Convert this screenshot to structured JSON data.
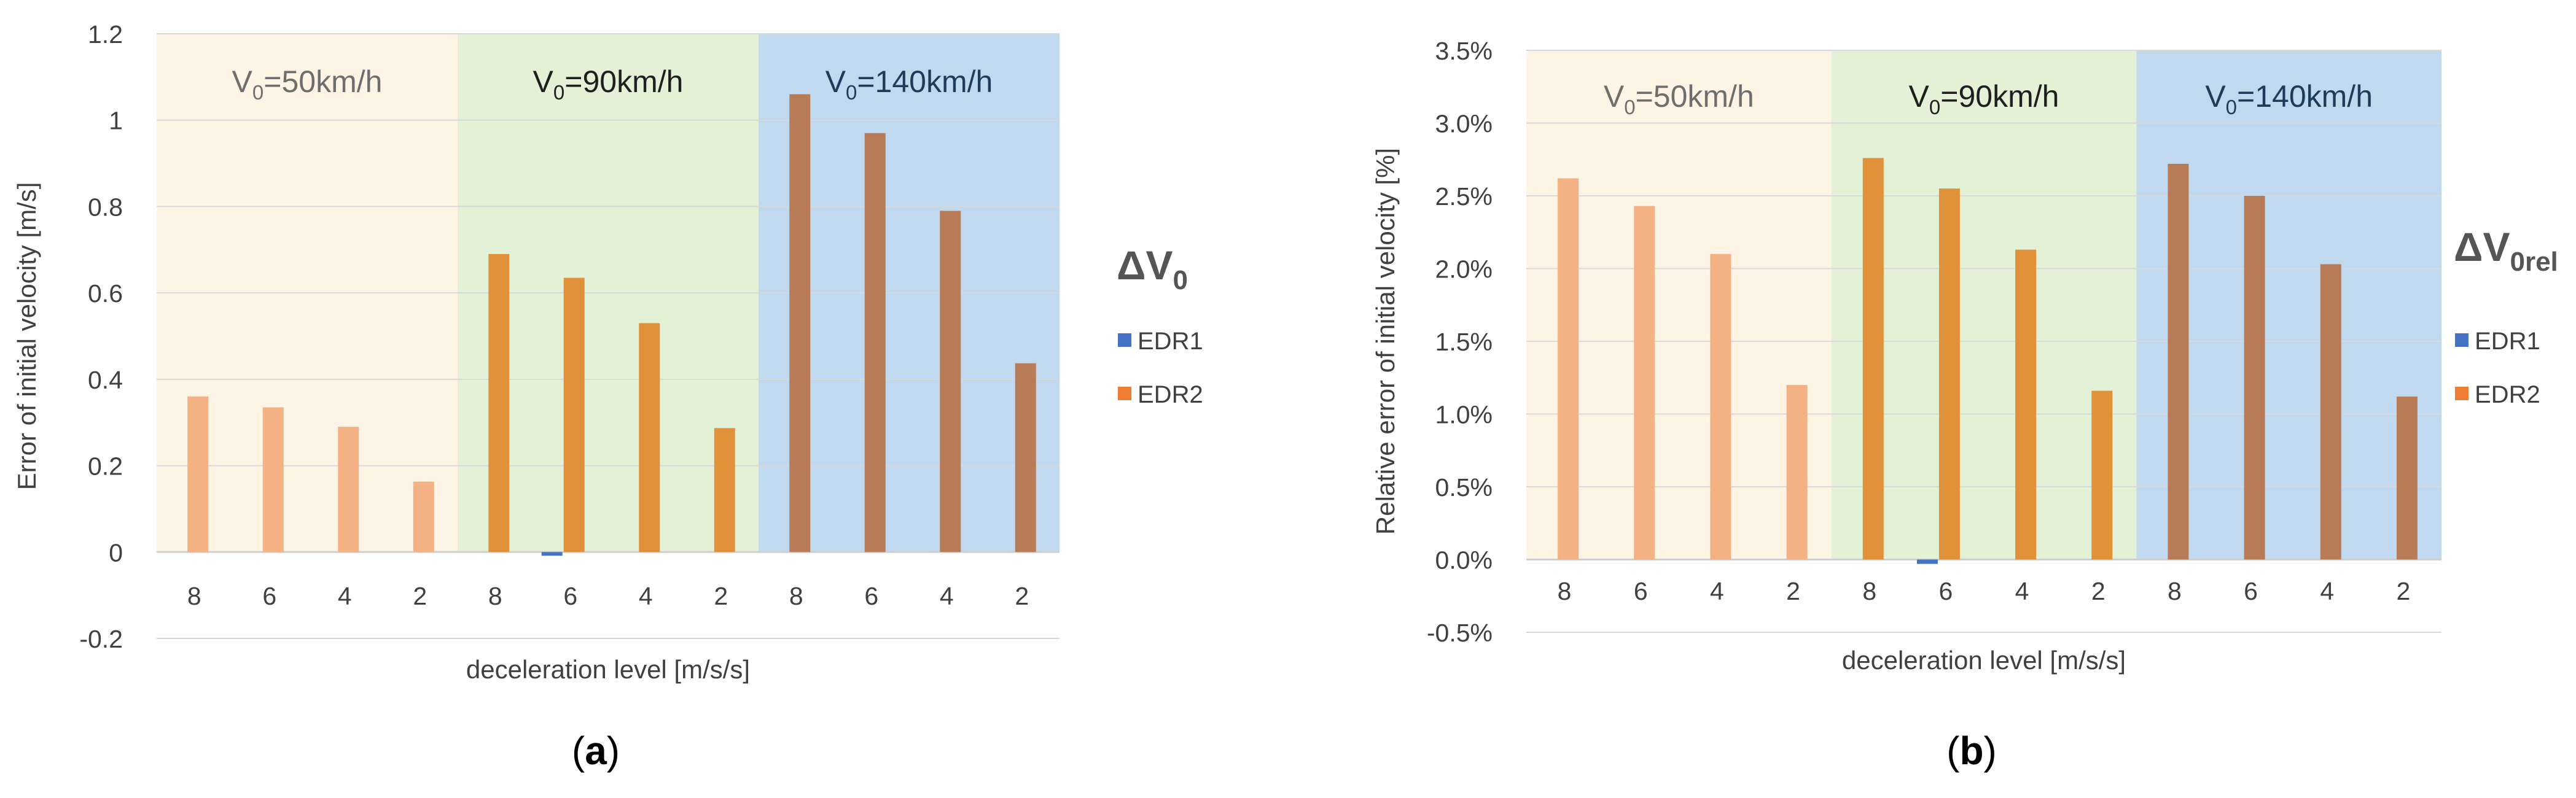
{
  "chart_data": [
    {
      "type": "bar",
      "panel_label": "(a)",
      "ylabel": "Error of initial velocity  [m/s]",
      "xlabel": "deceleration level [m/s/s]",
      "categories": [
        "8",
        "6",
        "4",
        "2",
        "8",
        "6",
        "4",
        "2",
        "8",
        "6",
        "4",
        "2"
      ],
      "ylim": [
        -0.2,
        1.2
      ],
      "yticks": [
        -0.2,
        0,
        0.2,
        0.4,
        0.6,
        0.8,
        1,
        1.2
      ],
      "ytick_labels": [
        "-0.2",
        "0",
        "0.2",
        "0.4",
        "0.6",
        "0.8",
        "1",
        "1.2"
      ],
      "grid": true,
      "legend_title_main": "ΔV",
      "legend_title_sub": "0",
      "legend": [
        {
          "name": "EDR1",
          "color": "#4472c4"
        },
        {
          "name": "EDR2",
          "color": "#ed7d31"
        }
      ],
      "regions": [
        {
          "label": "V",
          "sub": "0",
          "rest": "=50km/h",
          "from": 0,
          "to": 4,
          "color": "#fdf4e6",
          "text_color": "#6e6e6e"
        },
        {
          "label": "V",
          "sub": "0",
          "rest": "=90km/h",
          "from": 4,
          "to": 8,
          "color": "#e3f1d6",
          "text_color": "#1f1f1f"
        },
        {
          "label": "V",
          "sub": "0",
          "rest": "=140km/h",
          "from": 8,
          "to": 12,
          "color": "#c1d9ee",
          "text_color": "#1f3b5c"
        }
      ],
      "series": [
        {
          "name": "EDR1",
          "values": [
            0.0,
            0.0,
            0.0,
            0.0,
            0.0,
            -0.007,
            0.0,
            0.0,
            0.0,
            0.0,
            0.0,
            0.0
          ]
        },
        {
          "name": "EDR2",
          "values": [
            0.36,
            0.335,
            0.29,
            0.163,
            0.69,
            0.635,
            0.53,
            0.287,
            1.06,
            0.97,
            0.79,
            0.437
          ]
        }
      ],
      "bar_colors": [
        "#f4b183",
        "#f4b183",
        "#f4b183",
        "#f4b183",
        "#e0913a",
        "#e0913a",
        "#e0913a",
        "#e0913a",
        "#b77b57",
        "#b77b57",
        "#b77b57",
        "#b77b57"
      ]
    },
    {
      "type": "bar",
      "panel_label": "(b)",
      "ylabel": "Relative error of initial velocity  [%]",
      "xlabel": "deceleration level [m/s/s]",
      "categories": [
        "8",
        "6",
        "4",
        "2",
        "8",
        "6",
        "4",
        "2",
        "8",
        "6",
        "4",
        "2"
      ],
      "ylim": [
        -0.5,
        3.5
      ],
      "yticks": [
        -0.5,
        0,
        0.5,
        1,
        1.5,
        2,
        2.5,
        3,
        3.5
      ],
      "ytick_labels": [
        "-0.5%",
        "0.0%",
        "0.5%",
        "1.0%",
        "1.5%",
        "2.0%",
        "2.5%",
        "3.0%",
        "3.5%"
      ],
      "grid": true,
      "legend_title_main": "ΔV",
      "legend_title_sub": "0rel",
      "legend": [
        {
          "name": "EDR1",
          "color": "#4472c4"
        },
        {
          "name": "EDR2",
          "color": "#ed7d31"
        }
      ],
      "regions": [
        {
          "label": "V",
          "sub": "0",
          "rest": "=50km/h",
          "from": 0,
          "to": 4,
          "color": "#fdf4e6",
          "text_color": "#6e6e6e"
        },
        {
          "label": "V",
          "sub": "0",
          "rest": "=90km/h",
          "from": 4,
          "to": 8,
          "color": "#e3f1d6",
          "text_color": "#1f1f1f"
        },
        {
          "label": "V",
          "sub": "0",
          "rest": "=140km/h",
          "from": 8,
          "to": 12,
          "color": "#c1d9ee",
          "text_color": "#1f3b5c"
        }
      ],
      "series": [
        {
          "name": "EDR1",
          "values": [
            0.0,
            0.0,
            0.0,
            0.0,
            0.0,
            -0.03,
            0.0,
            0.0,
            0.0,
            0.0,
            0.0,
            0.0
          ]
        },
        {
          "name": "EDR2",
          "values": [
            2.62,
            2.43,
            2.1,
            1.2,
            2.76,
            2.55,
            2.13,
            1.16,
            2.72,
            2.5,
            2.03,
            1.12
          ]
        }
      ],
      "bar_colors": [
        "#f4b183",
        "#f4b183",
        "#f4b183",
        "#f4b183",
        "#e0913a",
        "#e0913a",
        "#e0913a",
        "#e0913a",
        "#b77b57",
        "#b77b57",
        "#b77b57",
        "#b77b57"
      ]
    }
  ]
}
